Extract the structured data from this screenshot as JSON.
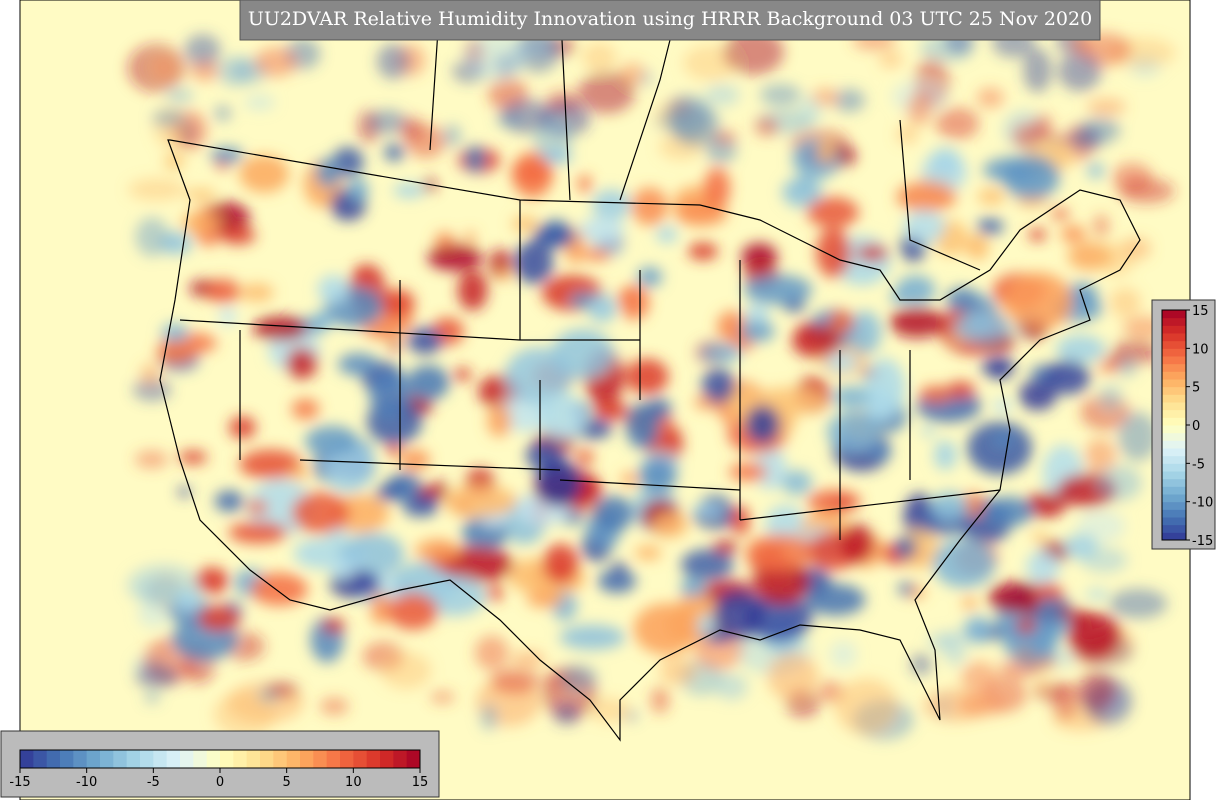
{
  "title": "UU2DVAR Relative Humidity Innovation using HRRR Background 03 UTC 25 Nov 2020",
  "colormap": [
    "#313695",
    "#4575b4",
    "#74add1",
    "#abd9e9",
    "#e0f3f8",
    "#ffffbf",
    "#fee090",
    "#fdae61",
    "#f46d43",
    "#d73027",
    "#a50026"
  ],
  "colorbar_horizontal": {
    "range": [
      -15,
      15
    ],
    "ticks": [
      -15,
      -10,
      -5,
      0,
      5,
      10,
      15
    ]
  },
  "colorbar_vertical": {
    "range": [
      -15,
      15
    ],
    "ticks": [
      15,
      10,
      5,
      0,
      -5,
      -10,
      -15
    ]
  }
}
